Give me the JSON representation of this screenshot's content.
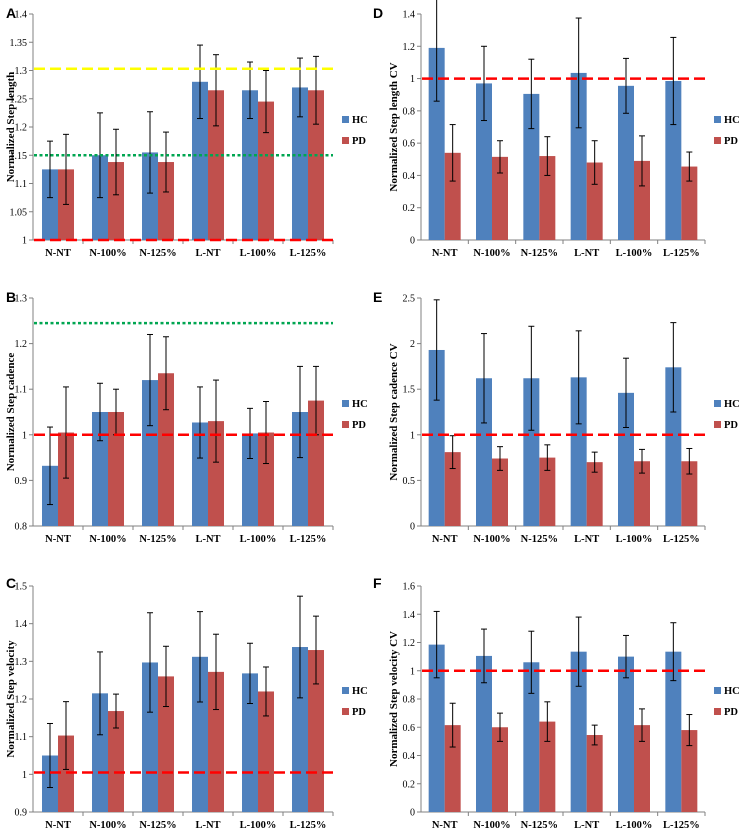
{
  "colors": {
    "HC": "#4f81bd",
    "PD": "#c0504d",
    "red_line": "#ff0000",
    "green_line": "#00a651",
    "yellow_line": "#ffff00",
    "axis": "#808080"
  },
  "chart_data": [
    {
      "panel": "A",
      "type": "bar",
      "ylabel": "Normalized Step length",
      "categories": [
        "N-NT",
        "N-100%",
        "N-125%",
        "L-NT",
        "L-100%",
        "L-125%"
      ],
      "yticks": [
        "1",
        "1.05",
        "1.1",
        "1.15",
        "1.2",
        "1.25",
        "1.3",
        "1.35",
        "1.4"
      ],
      "ylim": [
        1,
        1.4
      ],
      "series": [
        {
          "name": "HC",
          "values": [
            1.125,
            1.15,
            1.155,
            1.28,
            1.265,
            1.27
          ],
          "errors": [
            0.05,
            0.075,
            0.072,
            0.065,
            0.05,
            0.052
          ]
        },
        {
          "name": "PD",
          "values": [
            1.125,
            1.138,
            1.138,
            1.265,
            1.245,
            1.265
          ],
          "errors": [
            0.062,
            0.058,
            0.053,
            0.063,
            0.055,
            0.06
          ]
        }
      ],
      "reference_lines": [
        {
          "value": 1,
          "style": "dashed",
          "color": "red"
        },
        {
          "value": 1.15,
          "style": "dotted",
          "color": "green"
        },
        {
          "value": 1.303,
          "style": "dashed",
          "color": "yellow"
        }
      ]
    },
    {
      "panel": "B",
      "type": "bar",
      "ylabel": "Normalized Step cadence",
      "categories": [
        "N-NT",
        "N-100%",
        "N-125%",
        "L-NT",
        "L-100%",
        "L-125%"
      ],
      "yticks": [
        "0.8",
        "0.9",
        "1",
        "1.1",
        "1.2",
        "1.3"
      ],
      "ylim": [
        0.8,
        1.3
      ],
      "series": [
        {
          "name": "HC",
          "values": [
            0.932,
            1.05,
            1.12,
            1.027,
            1.003,
            1.05
          ],
          "errors": [
            0.085,
            0.063,
            0.1,
            0.078,
            0.055,
            0.1
          ]
        },
        {
          "name": "PD",
          "values": [
            1.005,
            1.05,
            1.135,
            1.03,
            1.005,
            1.075
          ],
          "errors": [
            0.1,
            0.05,
            0.08,
            0.09,
            0.068,
            0.075
          ]
        }
      ],
      "reference_lines": [
        {
          "value": 1,
          "style": "dashed",
          "color": "red"
        },
        {
          "value": 1.245,
          "style": "dotted",
          "color": "green"
        }
      ]
    },
    {
      "panel": "C",
      "type": "bar",
      "ylabel": "Normalized Step velocity",
      "categories": [
        "N-NT",
        "N-100%",
        "N-125%",
        "L-NT",
        "L-100%",
        "L-125%"
      ],
      "yticks": [
        "0.9",
        "1",
        "1.1",
        "1.2",
        "1.3",
        "1.4",
        "1.5"
      ],
      "ylim": [
        0.9,
        1.5
      ],
      "series": [
        {
          "name": "HC",
          "values": [
            1.05,
            1.215,
            1.297,
            1.312,
            1.268,
            1.338
          ],
          "errors": [
            0.085,
            0.11,
            0.132,
            0.12,
            0.08,
            0.135
          ]
        },
        {
          "name": "PD",
          "values": [
            1.103,
            1.168,
            1.26,
            1.272,
            1.22,
            1.33
          ],
          "errors": [
            0.09,
            0.045,
            0.08,
            0.1,
            0.065,
            0.09
          ]
        }
      ],
      "reference_lines": [
        {
          "value": 1.005,
          "style": "dashed",
          "color": "red"
        }
      ]
    },
    {
      "panel": "D",
      "type": "bar",
      "ylabel": "Normalized Step length CV",
      "categories": [
        "N-NT",
        "N-100%",
        "N-125%",
        "L-NT",
        "L-100%",
        "L-125%"
      ],
      "yticks": [
        "0",
        "0.2",
        "0.4",
        "0.6",
        "0.8",
        "1",
        "1.2",
        "1.4"
      ],
      "ylim": [
        0,
        1.4
      ],
      "series": [
        {
          "name": "HC",
          "values": [
            1.19,
            0.97,
            0.905,
            1.035,
            0.955,
            0.985
          ],
          "errors": [
            0.33,
            0.23,
            0.215,
            0.34,
            0.17,
            0.27
          ]
        },
        {
          "name": "PD",
          "values": [
            0.54,
            0.515,
            0.52,
            0.48,
            0.49,
            0.455
          ],
          "errors": [
            0.175,
            0.1,
            0.12,
            0.135,
            0.155,
            0.09
          ]
        }
      ],
      "reference_lines": [
        {
          "value": 1,
          "style": "dashed",
          "color": "red"
        }
      ]
    },
    {
      "panel": "E",
      "type": "bar",
      "ylabel": "Normalized Step cadence CV",
      "categories": [
        "N-NT",
        "N-100%",
        "N-125%",
        "L-NT",
        "L-100%",
        "L-125%"
      ],
      "yticks": [
        "0",
        "0.5",
        "1",
        "1.5",
        "2",
        "2.5"
      ],
      "ylim": [
        0,
        2.5
      ],
      "series": [
        {
          "name": "HC",
          "values": [
            1.93,
            1.62,
            1.62,
            1.63,
            1.46,
            1.74
          ],
          "errors": [
            0.55,
            0.49,
            0.57,
            0.51,
            0.38,
            0.49
          ]
        },
        {
          "name": "PD",
          "values": [
            0.81,
            0.74,
            0.75,
            0.7,
            0.71,
            0.71
          ],
          "errors": [
            0.18,
            0.13,
            0.14,
            0.11,
            0.13,
            0.14
          ]
        }
      ],
      "reference_lines": [
        {
          "value": 1,
          "style": "dashed",
          "color": "red"
        }
      ]
    },
    {
      "panel": "F",
      "type": "bar",
      "ylabel": "Normalized Step velocity CV",
      "categories": [
        "N-NT",
        "N-100%",
        "N-125%",
        "L-NT",
        "L-100%",
        "L-125%"
      ],
      "yticks": [
        "0",
        "0.2",
        "0.4",
        "0.6",
        "0.8",
        "1",
        "1.2",
        "1.4",
        "1.6"
      ],
      "ylim": [
        0,
        1.6
      ],
      "series": [
        {
          "name": "HC",
          "values": [
            1.185,
            1.105,
            1.06,
            1.135,
            1.1,
            1.135
          ],
          "errors": [
            0.235,
            0.19,
            0.22,
            0.245,
            0.15,
            0.205
          ]
        },
        {
          "name": "PD",
          "values": [
            0.615,
            0.6,
            0.64,
            0.545,
            0.615,
            0.58
          ],
          "errors": [
            0.155,
            0.1,
            0.14,
            0.07,
            0.115,
            0.11
          ]
        }
      ],
      "reference_lines": [
        {
          "value": 1,
          "style": "dashed",
          "color": "red"
        }
      ]
    }
  ]
}
